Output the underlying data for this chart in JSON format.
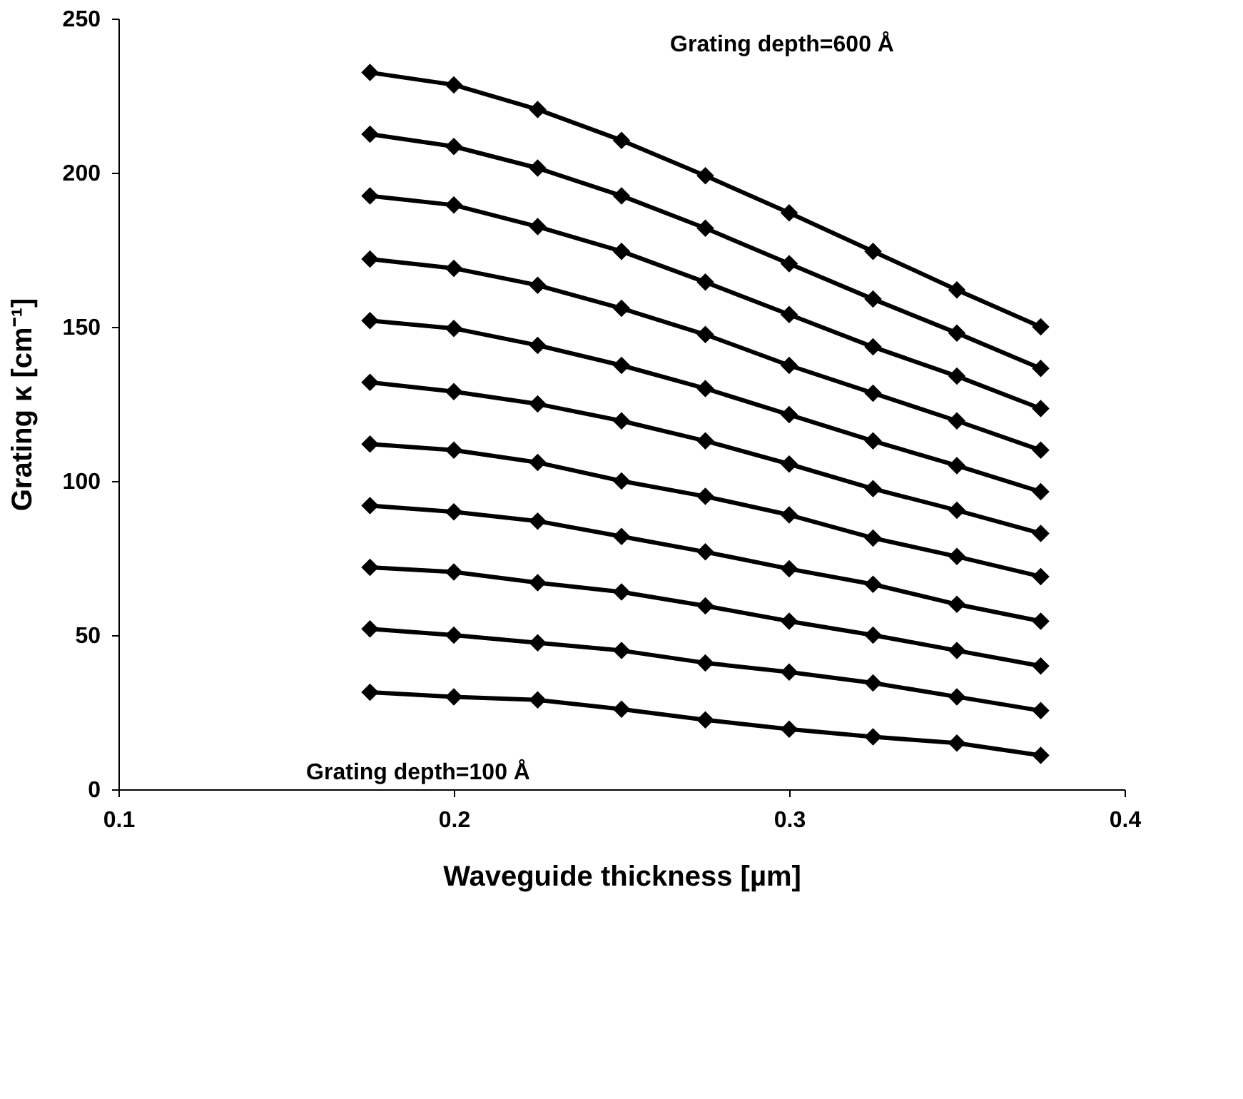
{
  "chart_data": {
    "type": "line",
    "xlabel": "Waveguide thickness [µm]",
    "ylabel": "Grating κ [cm⁻¹]",
    "x": [
      0.175,
      0.2,
      0.225,
      0.25,
      0.275,
      0.3,
      0.325,
      0.35,
      0.375
    ],
    "xlim": [
      0.1,
      0.4
    ],
    "xticks": [
      0.1,
      0.2,
      0.3,
      0.4
    ],
    "ylim": [
      0,
      250
    ],
    "yticks": [
      0,
      50,
      100,
      150,
      200,
      250
    ],
    "grid": false,
    "marker": "diamond",
    "line_style": "solid",
    "series": [
      {
        "color": "#000000",
        "values": [
          232.5,
          228.5,
          220.5,
          210.5,
          199,
          187,
          174.5,
          162,
          150
        ]
      },
      {
        "color": "#000000",
        "values": [
          212.5,
          208.5,
          201.5,
          192.5,
          182,
          170.5,
          159,
          148,
          136.5
        ]
      },
      {
        "color": "#000000",
        "values": [
          192.5,
          189.5,
          182.5,
          174.5,
          164.5,
          154,
          143.5,
          134,
          123.5
        ]
      },
      {
        "color": "#000000",
        "values": [
          172,
          169,
          163.5,
          156,
          147.5,
          137.5,
          128.5,
          119.5,
          110
        ]
      },
      {
        "color": "#000000",
        "values": [
          152,
          149.5,
          144,
          137.5,
          130,
          121.5,
          113,
          105,
          96.5
        ]
      },
      {
        "color": "#000000",
        "values": [
          132,
          129,
          125,
          119.5,
          113,
          105.5,
          97.5,
          90.5,
          83
        ]
      },
      {
        "color": "#000000",
        "values": [
          112,
          110,
          106,
          100,
          95,
          89,
          81.5,
          75.5,
          69
        ]
      },
      {
        "color": "#000000",
        "values": [
          92,
          90,
          87,
          82,
          77,
          71.5,
          66.5,
          60,
          54.5
        ]
      },
      {
        "color": "#000000",
        "values": [
          72,
          70.5,
          67,
          64,
          59.5,
          54.5,
          50,
          45,
          40
        ]
      },
      {
        "color": "#000000",
        "values": [
          52,
          50,
          47.5,
          45,
          41,
          38,
          34.5,
          30,
          25.5
        ]
      },
      {
        "color": "#000000",
        "values": [
          31.5,
          30,
          29,
          26,
          22.5,
          19.5,
          17,
          15,
          11
        ]
      }
    ],
    "annotations": [
      "Grating depth=600 Å",
      "Grating depth=100 Å"
    ]
  }
}
